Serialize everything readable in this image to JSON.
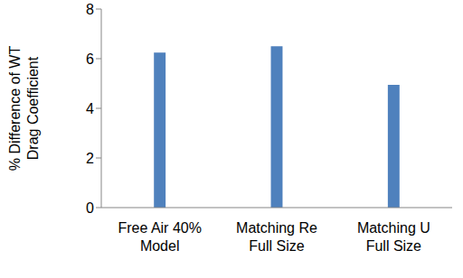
{
  "chart_data": {
    "type": "bar",
    "y_label": "% Difference of WT\nDrag Coefficient",
    "categories": [
      "Free Air 40%\nModel",
      "Matching Re\nFull Size",
      "Matching U\nFull Size"
    ],
    "values": [
      6.25,
      6.5,
      4.95
    ],
    "color": "#4f81bd",
    "ylim": [
      0,
      8
    ],
    "yticks": [
      0,
      2,
      4,
      6,
      8
    ],
    "grid": false
  }
}
